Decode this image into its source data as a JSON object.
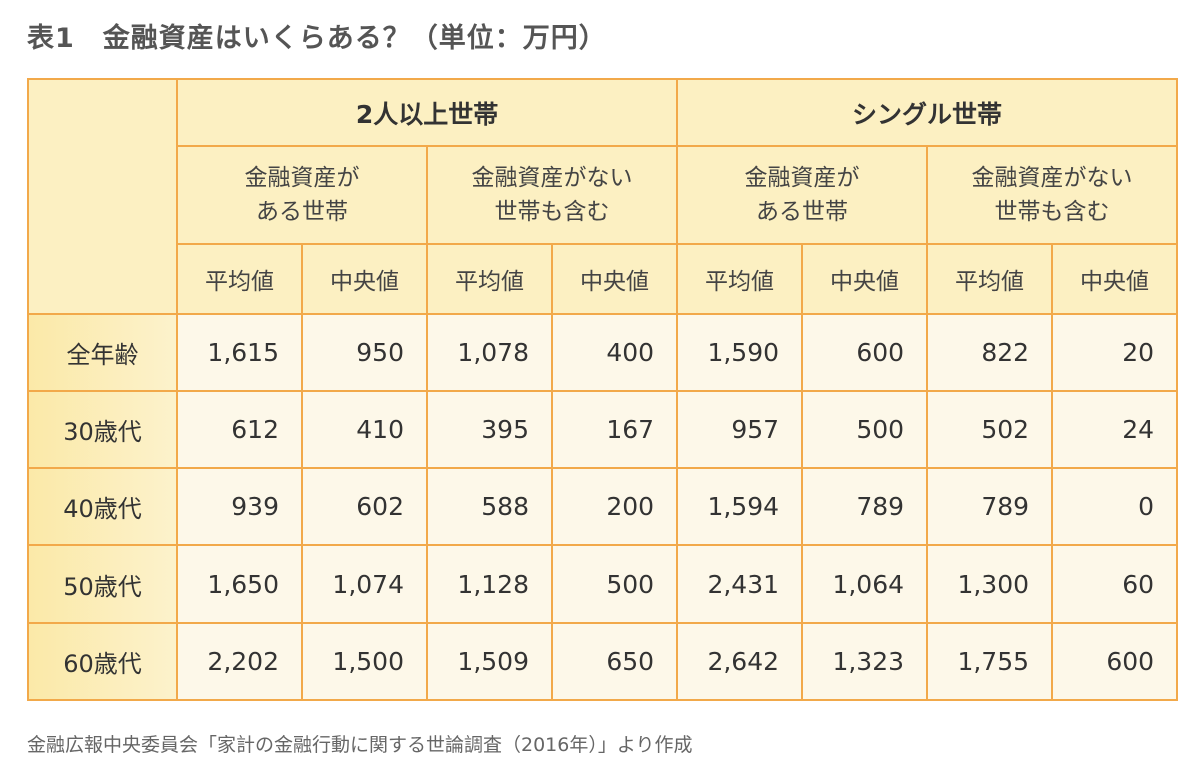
{
  "title": "表1　金融資産はいくらある？（単位：万円）",
  "groups": [
    "2人以上世帯",
    "シングル世帯"
  ],
  "subgroups": [
    "金融資産が\nある世帯",
    "金融資産がない\n世帯も含む",
    "金融資産が\nある世帯",
    "金融資産がない\n世帯も含む"
  ],
  "stats": [
    "平均値",
    "中央値",
    "平均値",
    "中央値",
    "平均値",
    "中央値",
    "平均値",
    "中央値"
  ],
  "rows": [
    {
      "label": "全年齢",
      "values": [
        "1,615",
        "950",
        "1,078",
        "400",
        "1,590",
        "600",
        "822",
        "20"
      ]
    },
    {
      "label": "30歳代",
      "values": [
        "612",
        "410",
        "395",
        "167",
        "957",
        "500",
        "502",
        "24"
      ]
    },
    {
      "label": "40歳代",
      "values": [
        "939",
        "602",
        "588",
        "200",
        "1,594",
        "789",
        "789",
        "0"
      ]
    },
    {
      "label": "50歳代",
      "values": [
        "1,650",
        "1,074",
        "1,128",
        "500",
        "2,431",
        "1,064",
        "1,300",
        "60"
      ]
    },
    {
      "label": "60歳代",
      "values": [
        "2,202",
        "1,500",
        "1,509",
        "650",
        "2,642",
        "1,323",
        "1,755",
        "600"
      ]
    }
  ],
  "source": "金融広報中央委員会「家計の金融行動に関する世論調査（2016年）」より作成",
  "colors": {
    "border": "#f2a94a",
    "header_bg": "#fcf0c2",
    "cell_bg": "#fdf8e9"
  }
}
